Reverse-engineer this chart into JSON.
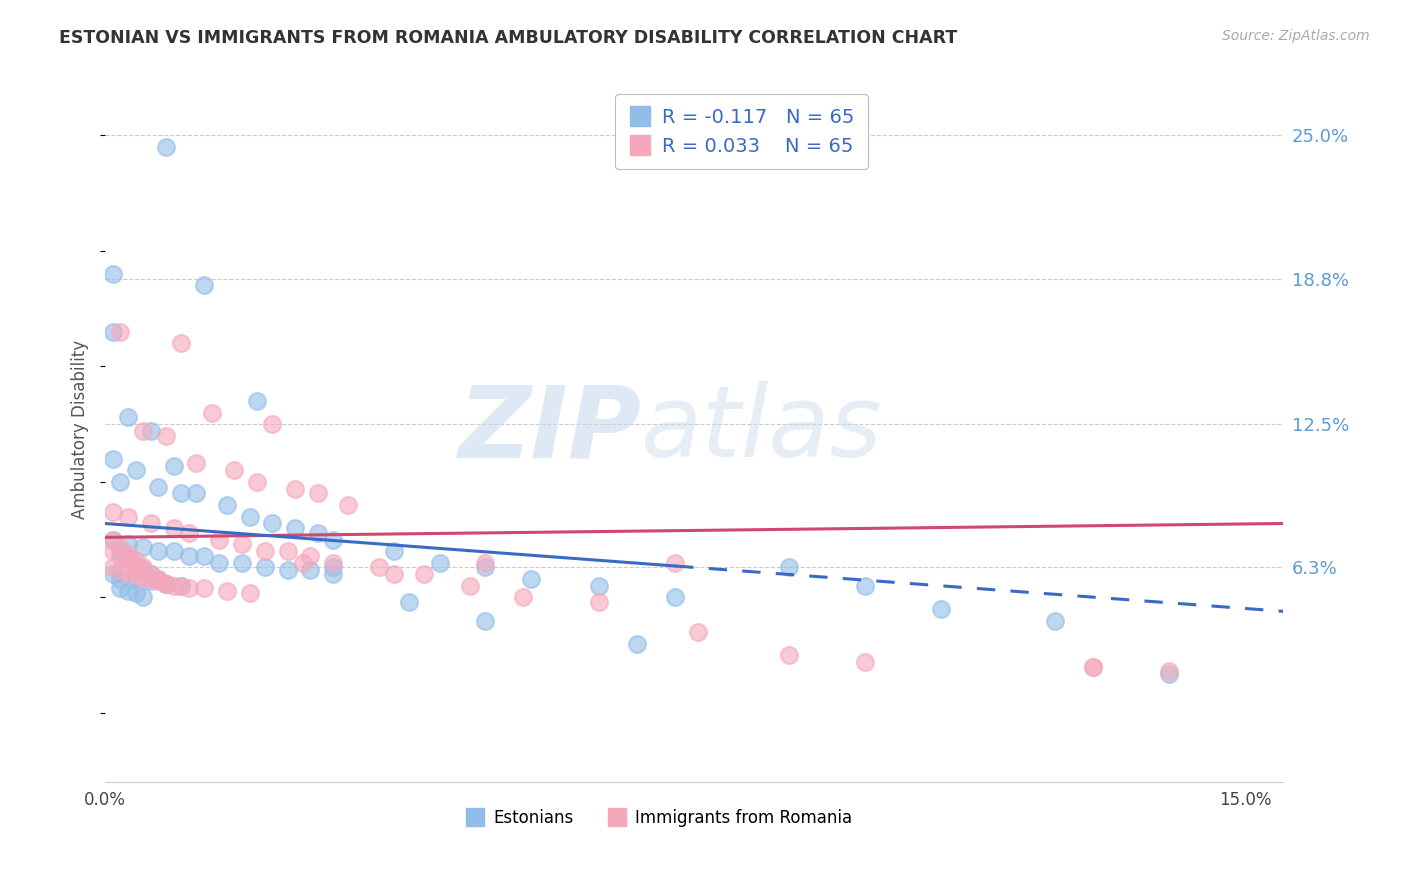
{
  "title": "ESTONIAN VS IMMIGRANTS FROM ROMANIA AMBULATORY DISABILITY CORRELATION CHART",
  "source": "Source: ZipAtlas.com",
  "ylabel": "Ambulatory Disability",
  "ytick_vals": [
    0.063,
    0.125,
    0.188,
    0.25
  ],
  "ytick_labels": [
    "6.3%",
    "12.5%",
    "18.8%",
    "25.0%"
  ],
  "xtick_vals": [
    0.0,
    0.15
  ],
  "xtick_labels": [
    "0.0%",
    "15.0%"
  ],
  "xmin": 0.0,
  "xmax": 0.155,
  "ymin": -0.03,
  "ymax": 0.275,
  "R_estonian": -0.117,
  "N_estonian": 65,
  "R_romanian": 0.033,
  "N_romanian": 65,
  "estonian_color": "#92bde8",
  "romanian_color": "#f5a8bc",
  "trend_estonian_color": "#3a6bc4",
  "trend_romanian_color": "#d04870",
  "watermark_zip": "ZIP",
  "watermark_atlas": "atlas",
  "estonian_x": [
    0.008,
    0.001,
    0.013,
    0.02,
    0.003,
    0.006,
    0.009,
    0.001,
    0.004,
    0.002,
    0.007,
    0.01,
    0.012,
    0.016,
    0.019,
    0.022,
    0.025,
    0.028,
    0.03,
    0.001,
    0.003,
    0.005,
    0.007,
    0.009,
    0.011,
    0.013,
    0.015,
    0.018,
    0.021,
    0.024,
    0.027,
    0.03,
    0.001,
    0.002,
    0.004,
    0.006,
    0.008,
    0.01,
    0.001,
    0.002,
    0.003,
    0.004,
    0.005,
    0.006,
    0.007,
    0.008,
    0.002,
    0.003,
    0.004,
    0.005,
    0.038,
    0.044,
    0.05,
    0.056,
    0.065,
    0.075,
    0.09,
    0.1,
    0.11,
    0.125,
    0.03,
    0.04,
    0.05,
    0.07,
    0.14
  ],
  "estonian_y": [
    0.245,
    0.19,
    0.185,
    0.135,
    0.128,
    0.122,
    0.107,
    0.165,
    0.105,
    0.1,
    0.098,
    0.095,
    0.095,
    0.09,
    0.085,
    0.082,
    0.08,
    0.078,
    0.075,
    0.11,
    0.073,
    0.072,
    0.07,
    0.07,
    0.068,
    0.068,
    0.065,
    0.065,
    0.063,
    0.062,
    0.062,
    0.06,
    0.06,
    0.058,
    0.058,
    0.057,
    0.056,
    0.055,
    0.075,
    0.07,
    0.067,
    0.064,
    0.062,
    0.06,
    0.058,
    0.056,
    0.054,
    0.053,
    0.052,
    0.05,
    0.07,
    0.065,
    0.063,
    0.058,
    0.055,
    0.05,
    0.063,
    0.055,
    0.045,
    0.04,
    0.063,
    0.048,
    0.04,
    0.03,
    0.017
  ],
  "romanian_x": [
    0.002,
    0.01,
    0.014,
    0.022,
    0.005,
    0.008,
    0.012,
    0.017,
    0.02,
    0.025,
    0.028,
    0.032,
    0.001,
    0.003,
    0.006,
    0.009,
    0.011,
    0.015,
    0.018,
    0.021,
    0.024,
    0.027,
    0.03,
    0.001,
    0.002,
    0.003,
    0.004,
    0.005,
    0.006,
    0.007,
    0.008,
    0.009,
    0.01,
    0.011,
    0.013,
    0.016,
    0.019,
    0.001,
    0.002,
    0.003,
    0.004,
    0.005,
    0.006,
    0.007,
    0.008,
    0.001,
    0.002,
    0.003,
    0.004,
    0.005,
    0.036,
    0.042,
    0.048,
    0.055,
    0.065,
    0.078,
    0.09,
    0.1,
    0.13,
    0.14,
    0.026,
    0.038,
    0.05,
    0.075,
    0.13
  ],
  "romanian_y": [
    0.165,
    0.16,
    0.13,
    0.125,
    0.122,
    0.12,
    0.108,
    0.105,
    0.1,
    0.097,
    0.095,
    0.09,
    0.087,
    0.085,
    0.082,
    0.08,
    0.078,
    0.075,
    0.073,
    0.07,
    0.07,
    0.068,
    0.065,
    0.063,
    0.062,
    0.06,
    0.06,
    0.058,
    0.058,
    0.057,
    0.056,
    0.055,
    0.055,
    0.054,
    0.054,
    0.053,
    0.052,
    0.07,
    0.068,
    0.066,
    0.064,
    0.062,
    0.06,
    0.058,
    0.056,
    0.075,
    0.072,
    0.069,
    0.066,
    0.063,
    0.063,
    0.06,
    0.055,
    0.05,
    0.048,
    0.035,
    0.025,
    0.022,
    0.02,
    0.018,
    0.065,
    0.06,
    0.065,
    0.065,
    0.02
  ],
  "trend_est_x0": 0.0,
  "trend_est_y0": 0.082,
  "trend_est_x1": 0.155,
  "trend_est_y1": 0.044,
  "trend_est_solid_end": 0.075,
  "trend_rom_x0": 0.0,
  "trend_rom_y0": 0.076,
  "trend_rom_x1": 0.155,
  "trend_rom_y1": 0.082
}
